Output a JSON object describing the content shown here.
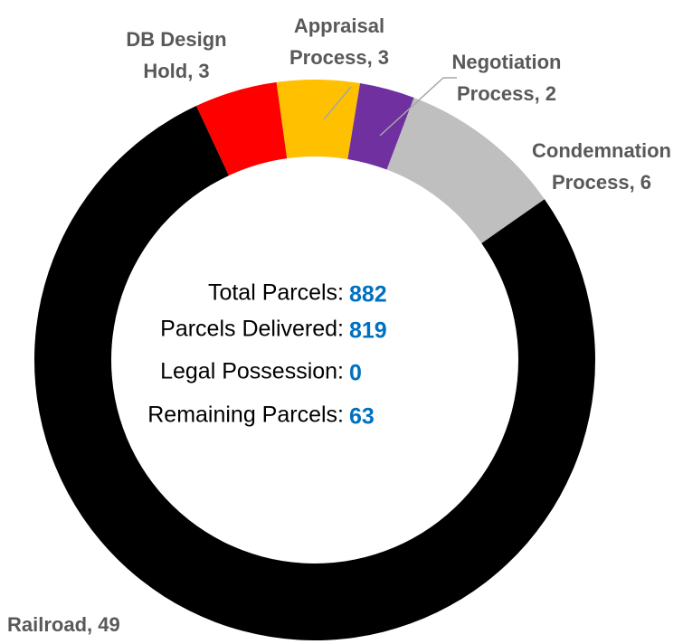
{
  "chart_data": {
    "type": "donut",
    "values": [
      3,
      3,
      2,
      6,
      49
    ],
    "value_labels": [
      "DB Design\nHold, 3",
      "Appraisal\nProcess, 3",
      "Negotiation\nProcess, 2",
      "Condemnation\nProcess, 6",
      "Railroad, 49"
    ],
    "colors": [
      "#ff0000",
      "#ffc000",
      "#7030a0",
      "#bfbfbf",
      "#000000"
    ],
    "center_stats": [
      {
        "label": "Total Parcels:",
        "value": 882
      },
      {
        "label": "Parcels Delivered:",
        "value": 819
      },
      {
        "label": "Legal Possession:",
        "value": 0
      },
      {
        "label": "Remaining Parcels:",
        "value": 63
      }
    ]
  }
}
